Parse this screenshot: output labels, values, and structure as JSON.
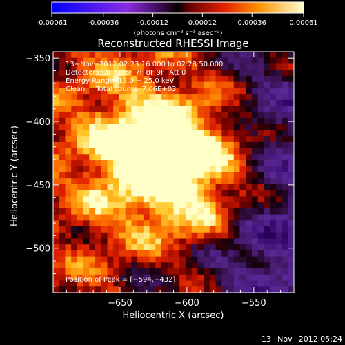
{
  "colorbar": {
    "tick_labels": [
      "-0.00061",
      "-0.00036",
      "-0.00012",
      "0.00012",
      "0.00036",
      "0.00061"
    ],
    "ticks": [
      -0.00061,
      -0.00036,
      -0.00012,
      0.00012,
      0.00036,
      0.00061
    ],
    "range": [
      -0.00061,
      0.00061
    ],
    "units_label": "(photons cm⁻² s⁻¹ asec⁻²)"
  },
  "chart_data": {
    "type": "heatmap",
    "title": "Reconstructed RHESSI Image",
    "xlabel": "Heliocentric X (arcsec)",
    "ylabel": "Heliocentric Y (arcsec)",
    "xlim": [
      -700,
      -520
    ],
    "ylim": [
      -535,
      -345
    ],
    "xticks": [
      -650,
      -600,
      -550
    ],
    "xtick_labels": [
      "−650",
      "−600",
      "−550"
    ],
    "yticks": [
      -350,
      -400,
      -450,
      -500
    ],
    "ytick_labels": [
      "−350",
      "−400",
      "−450",
      "−500"
    ],
    "annotations": [
      "13−Nov−2012 02:23:16.000 to 02:28:50.000",
      "Detectors: 3F 5F 6F 7F 8F 9F, Att 0",
      "Energy Range: 12.0 − 25.0 keV",
      "Clean     Total counts: 7.06E+03"
    ],
    "peak_label": "Position of Peak = [−594,−432]",
    "peak": {
      "x": -594,
      "y": -432
    },
    "grid_cells": 40,
    "colormap": [
      "#0000ff",
      "#8a2be2",
      "#5a2a8a",
      "#000000",
      "#8b0000",
      "#ff2a00",
      "#ff9a00",
      "#ffff80"
    ]
  },
  "footer": {
    "timestamp": "13−Nov−2012 05:24"
  }
}
